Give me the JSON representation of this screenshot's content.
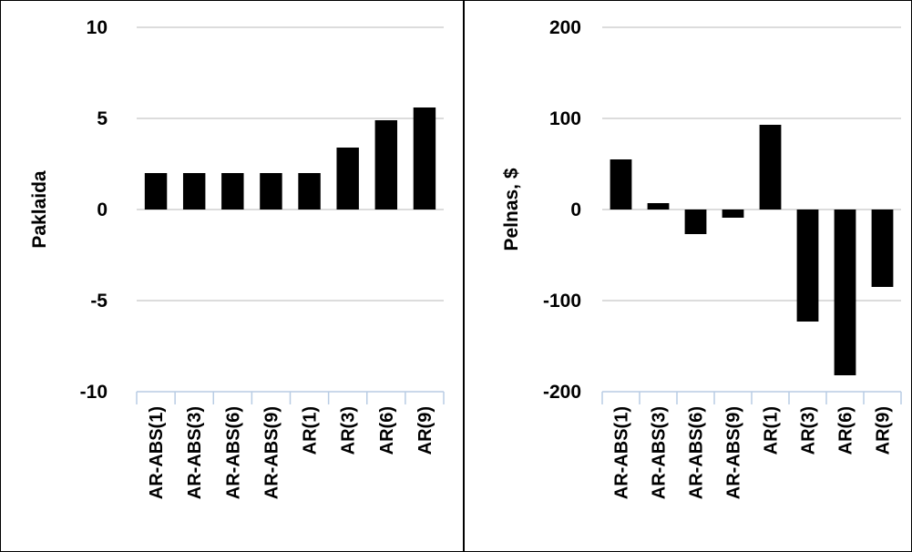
{
  "chart_data": [
    {
      "type": "bar",
      "ylabel": "Paklaida",
      "ylim": [
        -10,
        10
      ],
      "yticks": [
        "10",
        "5",
        "0",
        "-5",
        "-10"
      ],
      "grid": true,
      "categories": [
        "AR-ABS(1)",
        "AR-ABS(3)",
        "AR-ABS(6)",
        "AR-ABS(9)",
        "AR(1)",
        "AR(3)",
        "AR(6)",
        "AR(9)"
      ],
      "values": [
        2.0,
        2.0,
        2.0,
        2.0,
        2.0,
        3.4,
        4.9,
        5.6
      ],
      "bar_color": "#000000"
    },
    {
      "type": "bar",
      "ylabel": "Pelnas, $",
      "ylim": [
        -200,
        200
      ],
      "yticks": [
        "200",
        "100",
        "0",
        "-100",
        "-200"
      ],
      "grid": true,
      "categories": [
        "AR-ABS(1)",
        "AR-ABS(3)",
        "AR-ABS(6)",
        "AR-ABS(9)",
        "AR(1)",
        "AR(3)",
        "AR(6)",
        "AR(9)"
      ],
      "values": [
        55,
        7,
        -27,
        -9,
        93,
        -123,
        -182,
        -85
      ],
      "bar_color": "#000000"
    }
  ]
}
